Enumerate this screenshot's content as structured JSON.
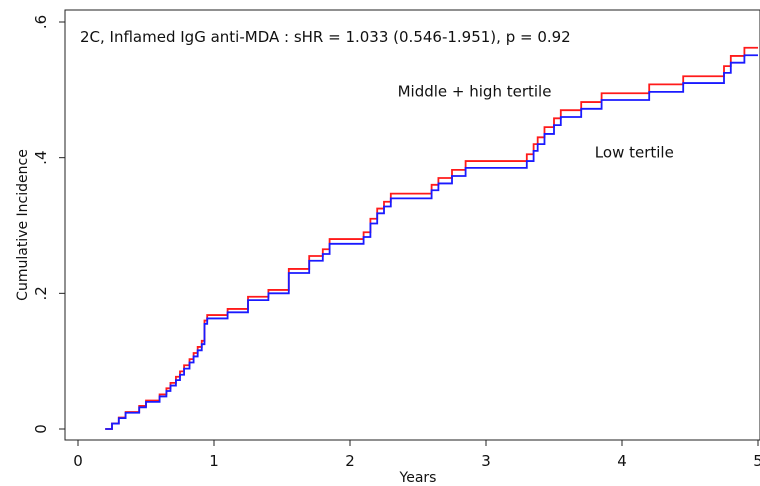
{
  "chart_data": {
    "type": "line",
    "step": true,
    "title": "2C, Inflamed IgG anti-MDA : sHR = 1.033 (0.546-1.951), p = 0.92",
    "xlabel": "Years",
    "ylabel": "Cumulative Incidence",
    "xlim": [
      0,
      5
    ],
    "ylim": [
      0,
      0.6
    ],
    "x_ticks": [
      0,
      1,
      2,
      3,
      4,
      5
    ],
    "x_tick_labels": [
      "0",
      "1",
      "2",
      "3",
      "4",
      "5"
    ],
    "y_ticks": [
      0,
      0.2,
      0.4,
      0.6
    ],
    "y_tick_labels": [
      "0",
      ".2",
      ".4",
      ".6"
    ],
    "grid": false,
    "annotations": [
      {
        "text": "Middle + high tertile",
        "x": 2.35,
        "y": 0.49
      },
      {
        "text": "Low tertile",
        "x": 3.8,
        "y": 0.4
      }
    ],
    "series": [
      {
        "color": "#ff1a1a",
        "x": [
          0.2,
          0.25,
          0.3,
          0.35,
          0.45,
          0.5,
          0.6,
          0.65,
          0.68,
          0.72,
          0.75,
          0.78,
          0.82,
          0.85,
          0.88,
          0.91,
          0.93,
          0.95,
          1.1,
          1.25,
          1.4,
          1.55,
          1.7,
          1.8,
          1.85,
          2.0,
          2.1,
          2.15,
          2.2,
          2.25,
          2.3,
          2.35,
          2.6,
          2.65,
          2.75,
          2.85,
          3.3,
          3.35,
          3.38,
          3.43,
          3.5,
          3.55,
          3.6,
          3.7,
          3.85,
          3.88,
          4.2,
          4.45,
          4.75,
          4.8,
          4.9,
          5.0
        ],
        "y": [
          0.0,
          0.008,
          0.017,
          0.025,
          0.034,
          0.042,
          0.051,
          0.06,
          0.068,
          0.077,
          0.085,
          0.094,
          0.103,
          0.112,
          0.121,
          0.13,
          0.16,
          0.168,
          0.177,
          0.195,
          0.205,
          0.236,
          0.255,
          0.265,
          0.28,
          0.28,
          0.29,
          0.31,
          0.325,
          0.335,
          0.347,
          0.347,
          0.36,
          0.37,
          0.382,
          0.395,
          0.405,
          0.42,
          0.43,
          0.445,
          0.458,
          0.47,
          0.47,
          0.482,
          0.495,
          0.495,
          0.508,
          0.52,
          0.535,
          0.55,
          0.562,
          0.562
        ]
      },
      {
        "color": "#1a1aff",
        "x": [
          0.2,
          0.25,
          0.3,
          0.35,
          0.45,
          0.5,
          0.6,
          0.65,
          0.68,
          0.72,
          0.75,
          0.78,
          0.82,
          0.85,
          0.88,
          0.91,
          0.93,
          0.95,
          1.1,
          1.25,
          1.4,
          1.55,
          1.7,
          1.8,
          1.85,
          2.0,
          2.1,
          2.15,
          2.2,
          2.25,
          2.3,
          2.35,
          2.6,
          2.65,
          2.75,
          2.85,
          3.3,
          3.35,
          3.38,
          3.43,
          3.5,
          3.55,
          3.6,
          3.7,
          3.85,
          3.88,
          4.2,
          4.45,
          4.75,
          4.8,
          4.9,
          5.0
        ],
        "y": [
          0.0,
          0.008,
          0.016,
          0.024,
          0.032,
          0.04,
          0.048,
          0.056,
          0.064,
          0.072,
          0.08,
          0.089,
          0.098,
          0.107,
          0.116,
          0.125,
          0.155,
          0.163,
          0.172,
          0.19,
          0.2,
          0.23,
          0.248,
          0.258,
          0.273,
          0.273,
          0.283,
          0.303,
          0.318,
          0.328,
          0.34,
          0.34,
          0.352,
          0.362,
          0.373,
          0.385,
          0.395,
          0.41,
          0.42,
          0.435,
          0.448,
          0.46,
          0.46,
          0.472,
          0.485,
          0.485,
          0.497,
          0.51,
          0.525,
          0.54,
          0.551,
          0.551
        ]
      }
    ]
  }
}
